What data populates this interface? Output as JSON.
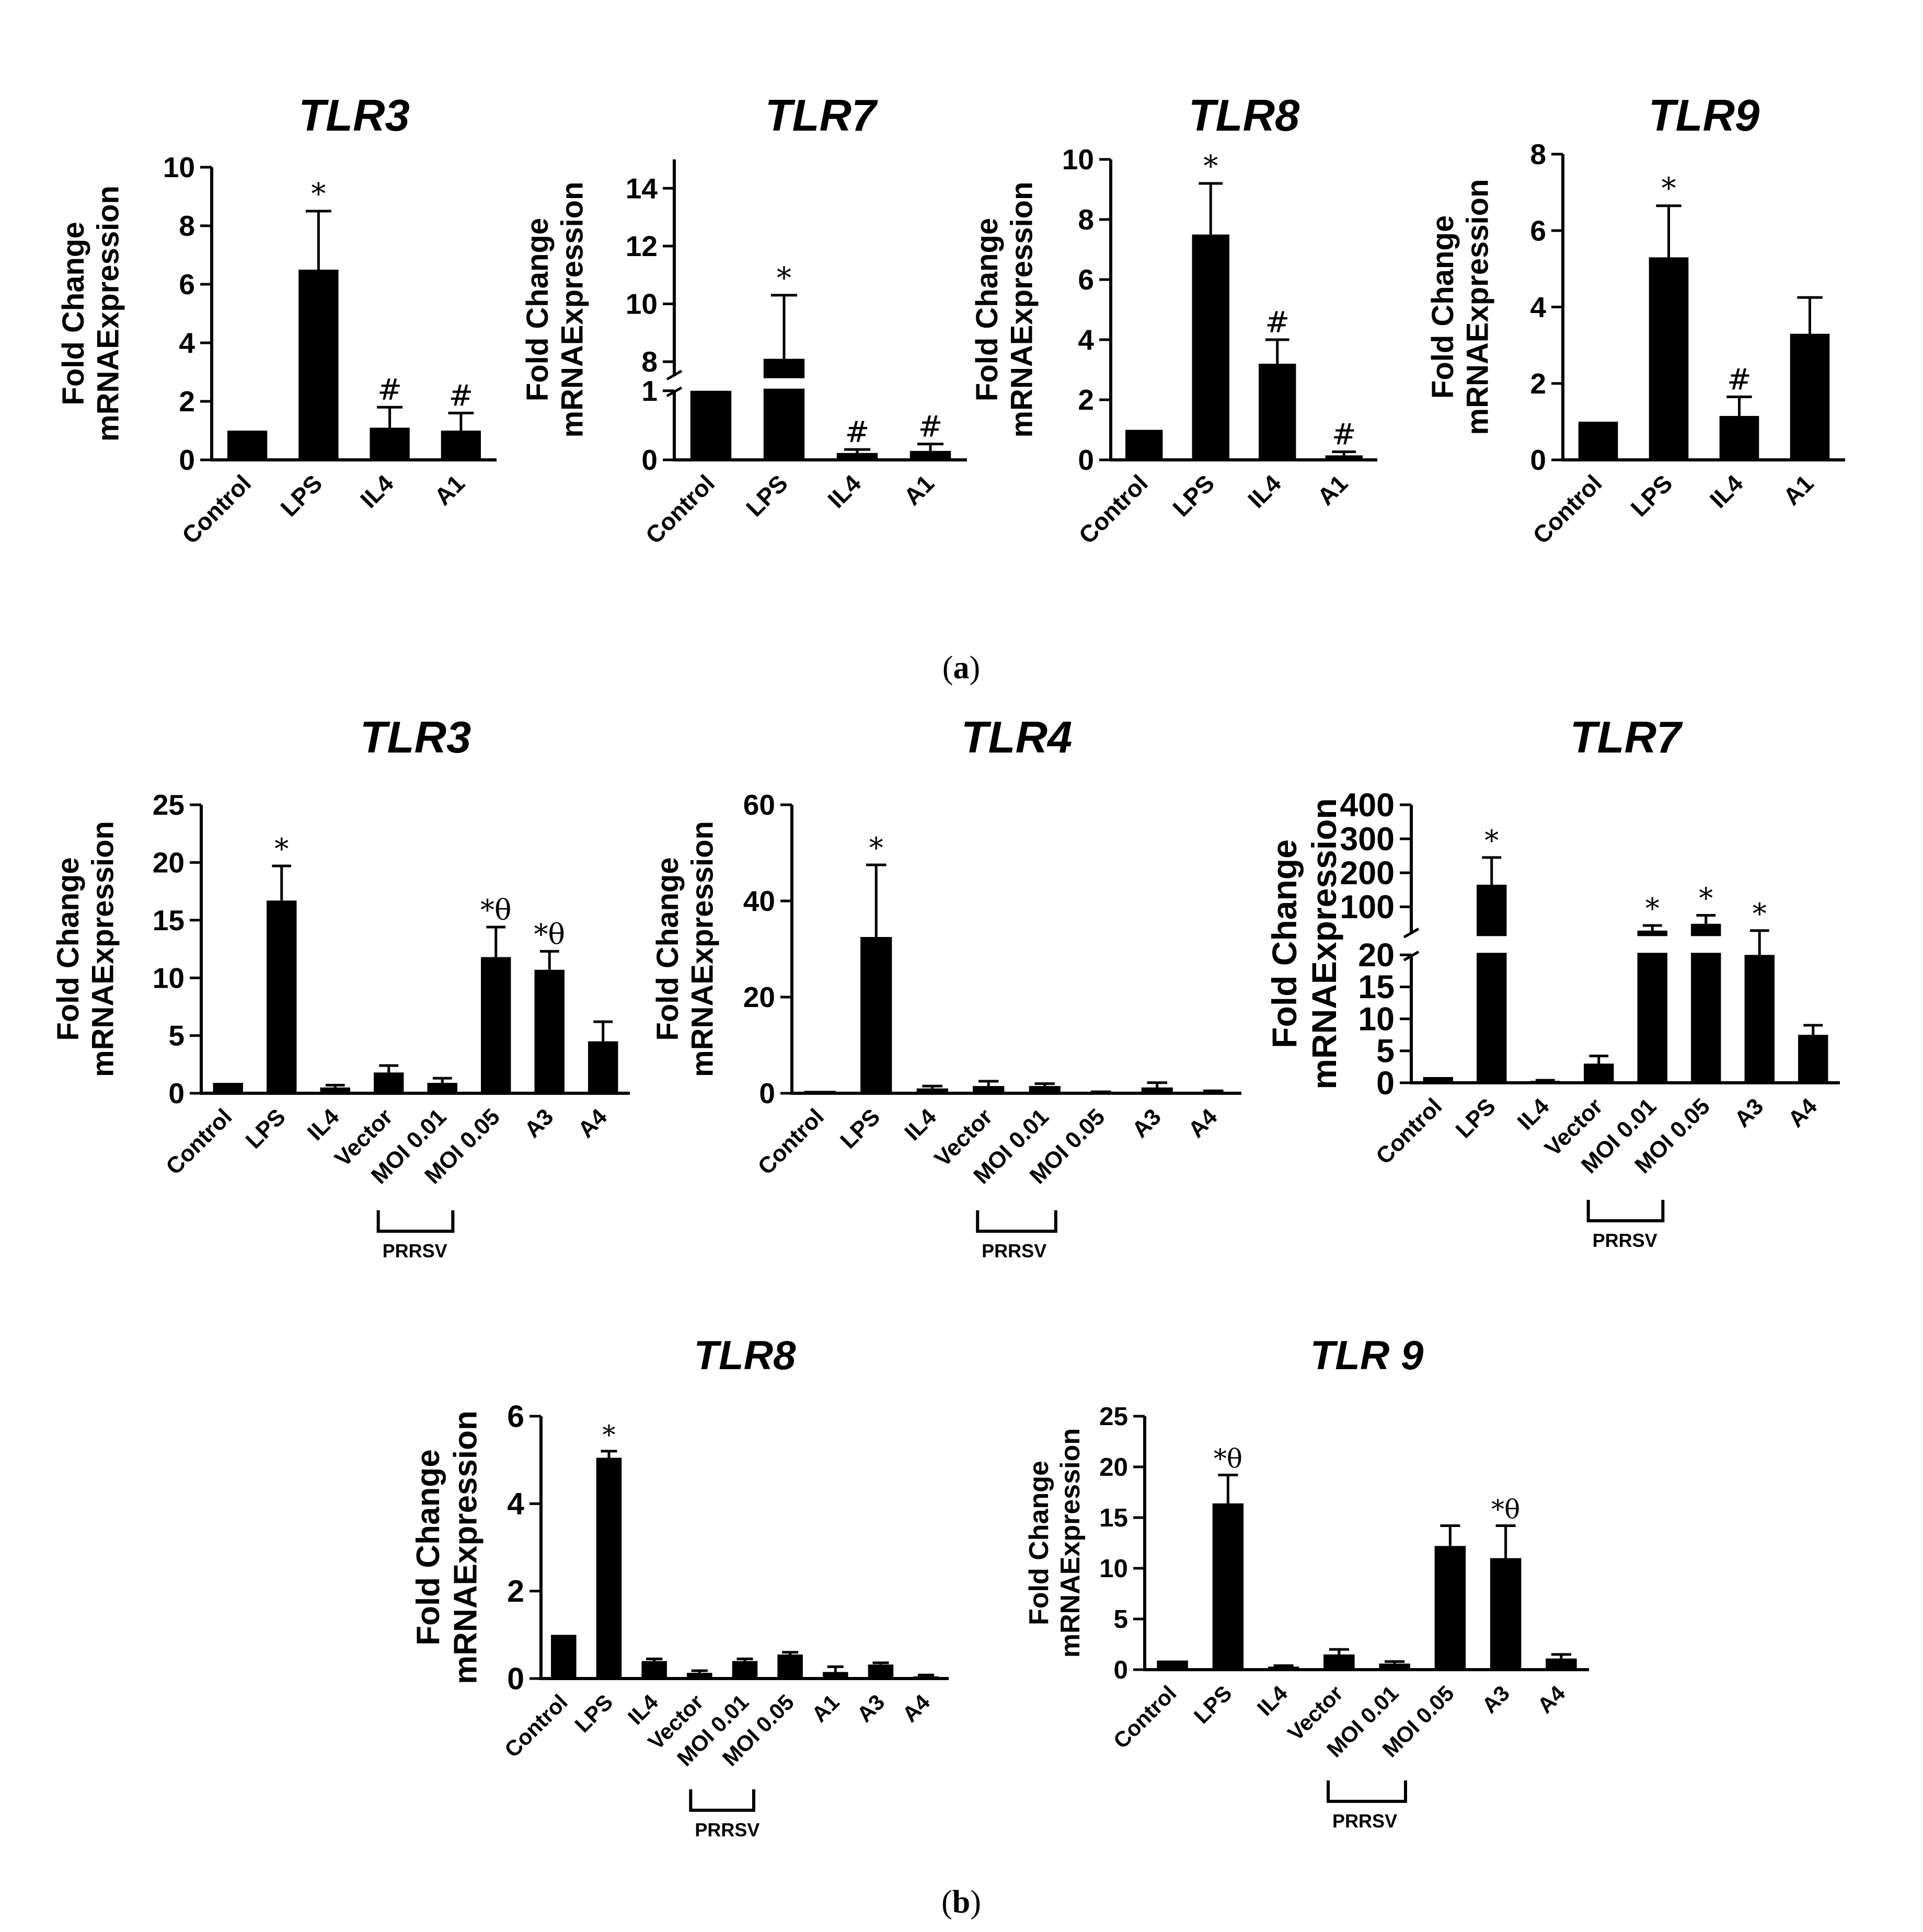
{
  "y_axis_label_line1": "Fold Change",
  "y_axis_label_line2": "mRNAExpression",
  "panel_labels": {
    "a": {
      "open": "(",
      "letter": "a",
      "close": ")"
    },
    "b": {
      "open": "(",
      "letter": "b",
      "close": ")"
    }
  },
  "chart_data": [
    {
      "id": "a-tlr3",
      "type": "bar",
      "title": "TLR3",
      "categories": [
        "Control",
        "LPS",
        "IL4",
        "A1"
      ],
      "values": [
        1.0,
        6.5,
        1.1,
        1.0
      ],
      "errors": [
        0,
        2.0,
        0.7,
        0.6
      ],
      "annotations": [
        "",
        "*",
        "#",
        "#"
      ],
      "ylim": [
        0,
        10
      ],
      "yticks": [
        0,
        2,
        4,
        6,
        8,
        10
      ]
    },
    {
      "id": "a-tlr7",
      "type": "bar",
      "title": "TLR7",
      "categories": [
        "Control",
        "LPS",
        "IL4",
        "A1"
      ],
      "values": [
        1.0,
        8.1,
        0.1,
        0.13
      ],
      "errors": [
        0,
        2.2,
        0.05,
        0.1
      ],
      "annotations": [
        "",
        "*",
        "#",
        "#"
      ],
      "broken_axis": {
        "lower": [
          0,
          1
        ],
        "upper": [
          7.5,
          15
        ]
      },
      "yticks": [
        0,
        1,
        8,
        10,
        12,
        14
      ]
    },
    {
      "id": "a-tlr8",
      "type": "bar",
      "title": "TLR8",
      "categories": [
        "Control",
        "LPS",
        "IL4",
        "A1"
      ],
      "values": [
        1.0,
        7.5,
        3.2,
        0.15
      ],
      "errors": [
        0,
        1.7,
        0.8,
        0.12
      ],
      "annotations": [
        "",
        "*",
        "#",
        "#"
      ],
      "ylim": [
        0,
        10
      ],
      "yticks": [
        0,
        2,
        4,
        6,
        8,
        10
      ]
    },
    {
      "id": "a-tlr9",
      "type": "bar",
      "title": "TLR9",
      "categories": [
        "Control",
        "LPS",
        "IL4",
        "A1"
      ],
      "values": [
        1.0,
        5.3,
        1.15,
        3.3
      ],
      "errors": [
        0,
        1.35,
        0.5,
        0.95
      ],
      "annotations": [
        "",
        "*",
        "#",
        ""
      ],
      "ylim": [
        0,
        8
      ],
      "yticks": [
        0,
        2,
        4,
        6,
        8
      ]
    },
    {
      "id": "b-tlr3",
      "type": "bar",
      "title": "TLR3",
      "categories": [
        "Control",
        "LPS",
        "IL4",
        "Vector",
        "MOI 0.01",
        "MOI 0.05",
        "A3",
        "A4"
      ],
      "values": [
        0.9,
        16.7,
        0.5,
        1.8,
        0.9,
        11.8,
        10.7,
        4.5
      ],
      "errors": [
        0,
        3.0,
        0.2,
        0.6,
        0.4,
        2.6,
        1.6,
        1.7
      ],
      "annotations": [
        "",
        "*",
        "",
        "",
        "",
        "*θ",
        "*θ",
        ""
      ],
      "ylim": [
        0,
        25
      ],
      "yticks": [
        0,
        5,
        10,
        15,
        20,
        25
      ],
      "bracket": {
        "label": "PRRSV",
        "from": 3,
        "to": 4
      }
    },
    {
      "id": "b-tlr4",
      "type": "bar",
      "title": "TLR4",
      "categories": [
        "Control",
        "LPS",
        "IL4",
        "Vector",
        "MOI 0.01",
        "MOI 0.05",
        "A3",
        "A4"
      ],
      "values": [
        0.5,
        32.5,
        1.0,
        1.5,
        1.5,
        0.2,
        1.2,
        0.3
      ],
      "errors": [
        0,
        15,
        0.5,
        1.0,
        0.5,
        0.1,
        1.0,
        0.2
      ],
      "annotations": [
        "",
        "*",
        "",
        "",
        "",
        "",
        "",
        ""
      ],
      "ylim": [
        0,
        60
      ],
      "yticks": [
        0,
        20,
        40,
        60
      ],
      "bracket": {
        "label": "PRRSV",
        "from": 3,
        "to": 4
      }
    },
    {
      "id": "b-tlr7",
      "type": "bar",
      "title": "TLR7",
      "categories": [
        "Control",
        "LPS",
        "IL4",
        "Vector",
        "MOI 0.01",
        "MOI 0.05",
        "A3",
        "A4"
      ],
      "values": [
        0.9,
        165,
        0.3,
        3.0,
        30,
        50,
        20,
        7.5
      ],
      "errors": [
        0,
        80,
        0.1,
        1.2,
        15,
        25,
        10,
        1.5
      ],
      "annotations": [
        "",
        "*",
        "",
        "",
        "*",
        "*",
        "*",
        ""
      ],
      "broken_axis": {
        "lower": [
          0,
          20
        ],
        "upper": [
          20,
          400
        ]
      },
      "yticks": [
        0,
        5,
        10,
        15,
        20,
        100,
        200,
        300,
        400
      ],
      "bracket": {
        "label": "PRRSV",
        "from": 3,
        "to": 4
      }
    },
    {
      "id": "b-tlr8",
      "type": "bar",
      "title": "TLR8",
      "categories": [
        "Control",
        "LPS",
        "IL4",
        "Vector",
        "MOI 0.01",
        "MOI 0.05",
        "A1",
        "A3",
        "A4"
      ],
      "values": [
        1.0,
        5.05,
        0.4,
        0.13,
        0.4,
        0.55,
        0.15,
        0.32,
        0.05
      ],
      "errors": [
        0,
        0.15,
        0.05,
        0.05,
        0.05,
        0.05,
        0.12,
        0.04,
        0.03
      ],
      "annotations": [
        "",
        "*",
        "",
        "",
        "",
        "",
        "",
        "",
        ""
      ],
      "ylim": [
        0,
        6
      ],
      "yticks": [
        0,
        2,
        4,
        6
      ],
      "bracket": {
        "label": "PRRSV",
        "from": 3,
        "to": 4
      }
    },
    {
      "id": "b-tlr9",
      "type": "bar",
      "title": "TLR 9",
      "categories": [
        "Control",
        "LPS",
        "IL4",
        "Vector",
        "MOI 0.01",
        "MOI 0.05",
        "A3",
        "A4"
      ],
      "values": [
        0.9,
        16.4,
        0.3,
        1.5,
        0.6,
        12.2,
        11.0,
        1.1
      ],
      "errors": [
        0,
        2.8,
        0.1,
        0.5,
        0.2,
        2.0,
        3.2,
        0.4
      ],
      "annotations": [
        "",
        "*θ",
        "",
        "",
        "",
        "",
        "*θ",
        ""
      ],
      "ylim": [
        0,
        25
      ],
      "yticks": [
        0,
        5,
        10,
        15,
        20,
        25
      ],
      "bracket": {
        "label": "PRRSV",
        "from": 3,
        "to": 4
      }
    }
  ]
}
